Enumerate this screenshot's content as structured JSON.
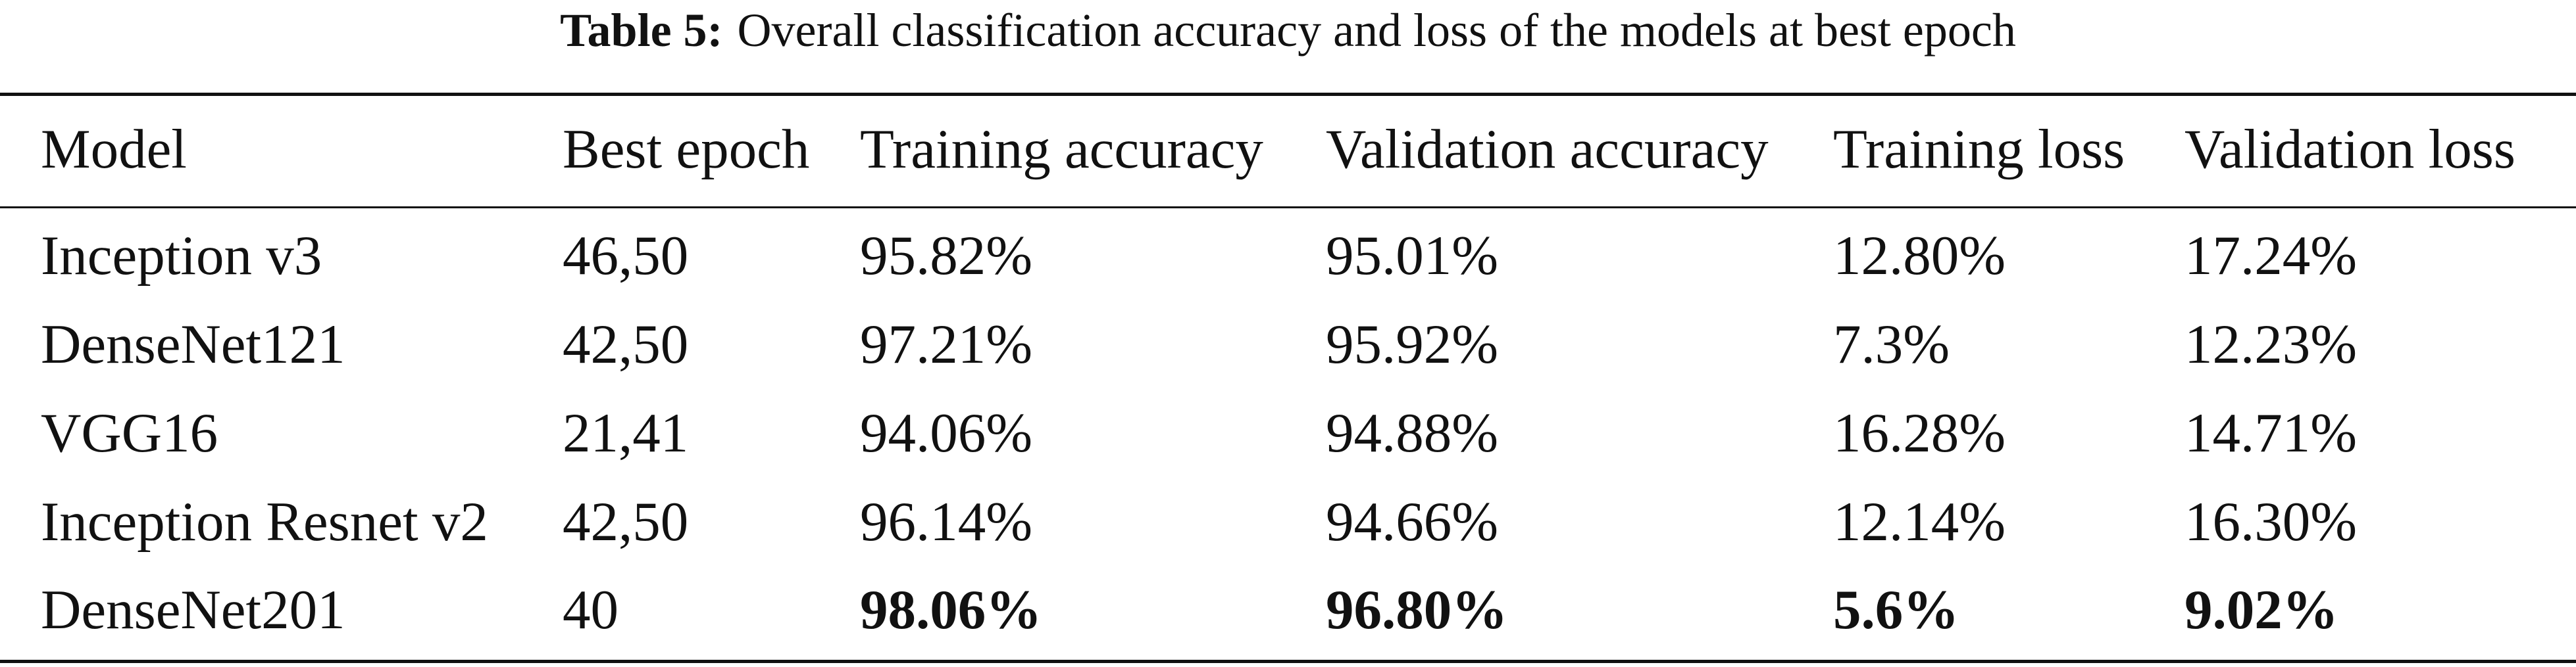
{
  "caption": {
    "label": "Table 5:",
    "text": "Overall classification accuracy and loss of the models at best epoch"
  },
  "table": {
    "headers": [
      "Model",
      "Best epoch",
      "Training accuracy",
      "Validation accuracy",
      "Training loss",
      "Validation loss"
    ],
    "rows": [
      [
        "Inception v3",
        "46,50",
        "95.82%",
        "95.01%",
        "12.80%",
        "17.24%"
      ],
      [
        "DenseNet121",
        "42,50",
        "97.21%",
        "95.92%",
        "7.3%",
        "12.23%"
      ],
      [
        "VGG16",
        "21,41",
        "94.06%",
        "94.88%",
        "16.28%",
        "14.71%"
      ],
      [
        "Inception Resnet v2",
        "42,50",
        "96.14%",
        "94.66%",
        "12.14%",
        "16.30%"
      ],
      [
        "DenseNet201",
        "40",
        "98.06%",
        "96.80%",
        "5.6%",
        "9.02%"
      ]
    ],
    "bold_cells_last_row": [
      2,
      3,
      4,
      5
    ]
  }
}
